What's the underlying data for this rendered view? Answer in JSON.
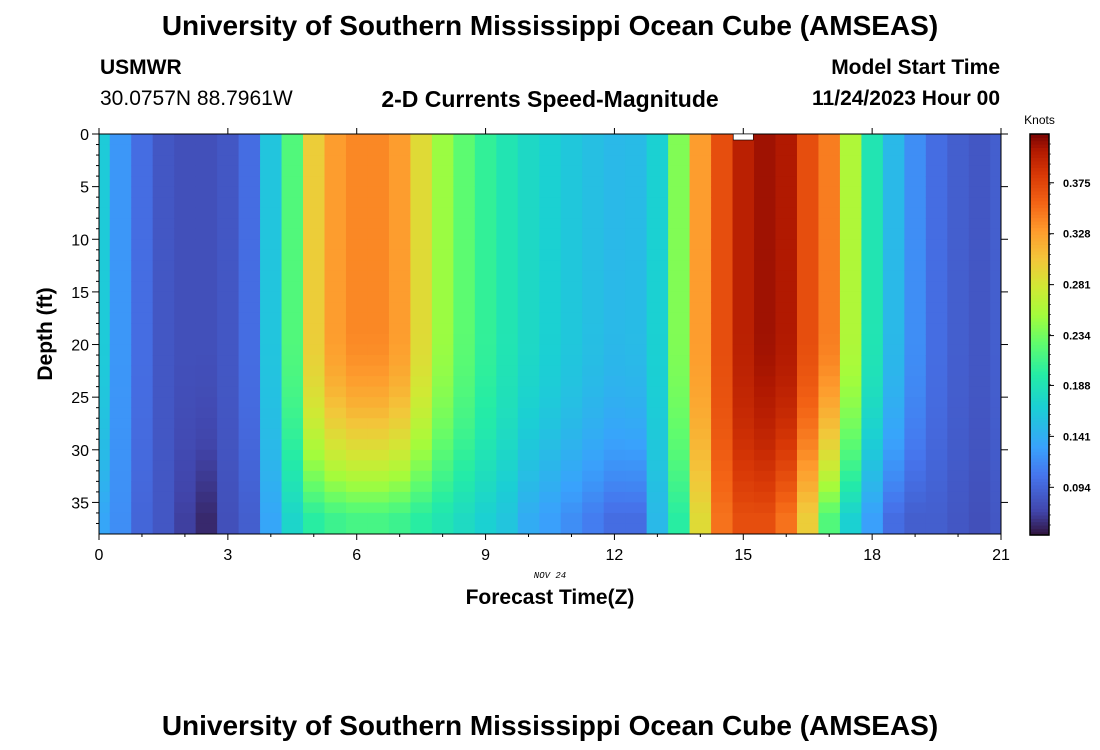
{
  "header": {
    "title": "University of Southern Mississippi Ocean Cube (AMSEAS)",
    "station_id": "USMWR",
    "station_coords": "30.0757N  88.7961W",
    "plot_title": "2-D Currents Speed-Magnitude",
    "model_start_label": "Model Start Time",
    "model_start_value": "11/24/2023 Hour 00"
  },
  "footer": {
    "title": "University of Southern Mississippi Ocean Cube (AMSEAS)"
  },
  "chart_data": {
    "type": "heatmap",
    "title": "2-D Currents Speed-Magnitude",
    "xlabel": "Forecast Time(Z)",
    "ylabel": "Depth (ft)",
    "x_sublabel": "NOV 24",
    "xlim": [
      0,
      21
    ],
    "ylim": [
      38,
      0
    ],
    "x_ticks": [
      0,
      3,
      6,
      9,
      12,
      15,
      18,
      21
    ],
    "y_ticks": [
      0,
      5,
      10,
      15,
      20,
      25,
      30,
      35
    ],
    "colorbar": {
      "unit": "Knots",
      "range": [
        0.05,
        0.42
      ],
      "ticks": [
        0.094,
        0.141,
        0.188,
        0.234,
        0.281,
        0.328,
        0.375
      ],
      "tick_labels": [
        "0.094",
        "0.141",
        "0.188",
        "0.234",
        "0.281",
        "0.328",
        "0.375"
      ]
    },
    "time_hours": [
      0,
      0.5,
      1,
      1.5,
      2,
      2.5,
      3,
      3.5,
      4,
      4.5,
      5,
      5.5,
      6,
      6.5,
      7,
      7.5,
      8,
      8.5,
      9,
      9.5,
      10,
      10.5,
      11,
      11.5,
      12,
      12.5,
      13,
      13.5,
      14,
      14.5,
      15,
      15.5,
      16,
      16.5,
      17,
      17.5,
      18,
      18.5,
      19,
      19.5,
      20,
      20.5,
      21
    ],
    "speed_surface_knots": [
      0.165,
      0.125,
      0.1,
      0.085,
      0.08,
      0.08,
      0.085,
      0.1,
      0.16,
      0.22,
      0.3,
      0.33,
      0.34,
      0.34,
      0.33,
      0.29,
      0.25,
      0.225,
      0.205,
      0.19,
      0.178,
      0.17,
      0.162,
      0.155,
      0.15,
      0.152,
      0.17,
      0.24,
      0.33,
      0.37,
      0.4,
      0.41,
      0.405,
      0.37,
      0.345,
      0.26,
      0.19,
      0.15,
      0.12,
      0.1,
      0.09,
      0.085,
      0.09
    ],
    "speed_bottom_knots": [
      0.135,
      0.12,
      0.095,
      0.085,
      0.07,
      0.06,
      0.08,
      0.09,
      0.135,
      0.175,
      0.2,
      0.21,
      0.215,
      0.215,
      0.21,
      0.2,
      0.19,
      0.18,
      0.17,
      0.16,
      0.14,
      0.13,
      0.12,
      0.11,
      0.1,
      0.1,
      0.15,
      0.2,
      0.29,
      0.35,
      0.37,
      0.37,
      0.35,
      0.3,
      0.22,
      0.17,
      0.13,
      0.1,
      0.09,
      0.09,
      0.085,
      0.08,
      0.085
    ]
  }
}
